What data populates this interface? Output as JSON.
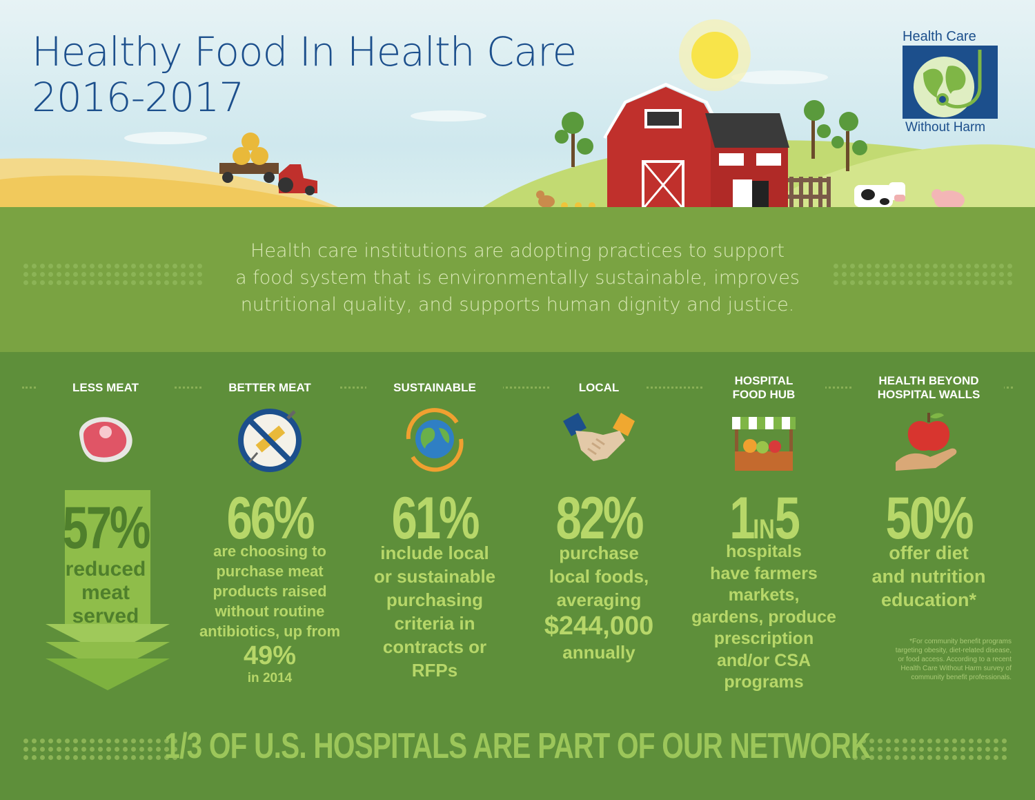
{
  "header": {
    "title_line1": "Healthy Food In Health Care",
    "title_line2": "2016-2017"
  },
  "logo": {
    "top_text": "Health Care",
    "bottom_text": "Without Harm"
  },
  "intro": {
    "line1": "Health care institutions are adopting practices to support",
    "line2": "a food system that is environmentally sustainable, improves",
    "line3": "nutritional quality, and supports human dignity and justice."
  },
  "columns": [
    {
      "heading": [
        "LESS MEAT"
      ],
      "icon": "steak-icon",
      "stat": "57%",
      "body": [
        "reduced",
        "meat",
        "served"
      ]
    },
    {
      "heading": [
        "BETTER MEAT"
      ],
      "icon": "no-antibiotics-syringe-icon",
      "stat": "66%",
      "body": [
        "are choosing to",
        "purchase meat",
        "products raised",
        "without routine",
        "antibiotics, up from"
      ],
      "highlight": "49%",
      "small": "in 2014"
    },
    {
      "heading": [
        "SUSTAINABLE"
      ],
      "icon": "globe-recycle-icon",
      "stat": "61%",
      "body": [
        "include local",
        "or sustainable",
        "purchasing",
        "criteria in",
        "contracts or",
        "RFPs"
      ]
    },
    {
      "heading": [
        "LOCAL"
      ],
      "icon": "handshake-icon",
      "stat": "82%",
      "body": [
        "purchase",
        "local foods,",
        "averaging"
      ],
      "highlight": "$244,000",
      "after": "annually"
    },
    {
      "heading": [
        "HOSPITAL",
        "FOOD HUB"
      ],
      "icon": "market-stall-icon",
      "stat": "1 IN 5",
      "stat_parts": [
        "1",
        "IN",
        "5"
      ],
      "body": [
        "hospitals",
        "have farmers",
        "markets,",
        "gardens, produce",
        "prescription",
        "and/or CSA",
        "programs"
      ]
    },
    {
      "heading": [
        "HEALTH BEYOND",
        "HOSPITAL WALLS"
      ],
      "icon": "apple-in-hand-icon",
      "stat": "50%",
      "body": [
        "offer diet",
        "and nutrition",
        "education*"
      ]
    }
  ],
  "footnote": {
    "lines": [
      "*For community benefit programs",
      "targeting obesity, diet-related disease,",
      "or food access. According to a recent",
      "Health Care Without Harm survey of",
      "community benefit professionals."
    ]
  },
  "bottom_banner": "1/3 OF U.S. HOSPITALS ARE PART OF OUR NETWORK",
  "colors": {
    "title_blue": "#1c4f8c",
    "stat_green": "#b7d769",
    "band_light": "#7aa342",
    "band_dark": "#5e8f3a",
    "barn_red": "#c0302c"
  }
}
